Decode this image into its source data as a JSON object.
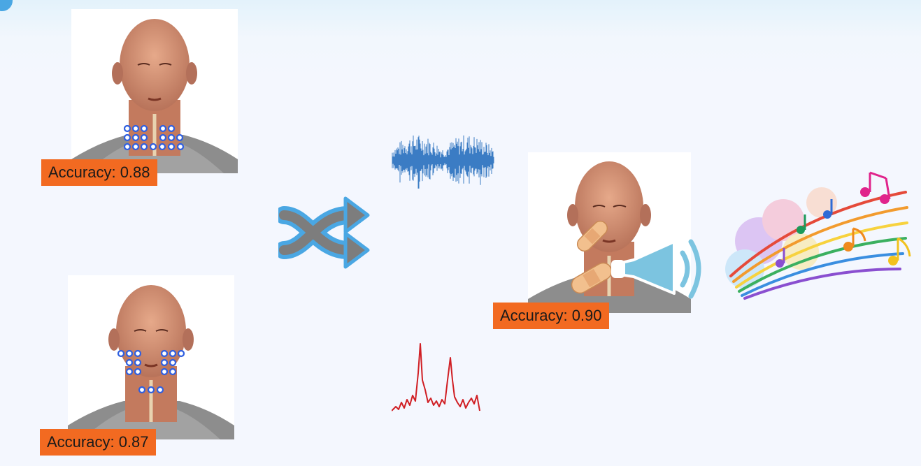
{
  "panels": {
    "neck": {
      "accuracy_label": "Accuracy: 0.88"
    },
    "face": {
      "accuracy_label": "Accuracy: 0.87"
    },
    "combined": {
      "accuracy_label": "Accuracy: 0.90"
    }
  },
  "colors": {
    "badge": "#f26a21",
    "electrode": "#2f5fe0",
    "shuffle_arrow": "#4aa7e3",
    "waveform": "#3b7cc4",
    "spectrum": "#d01f24",
    "speaker": "#7cc4e0"
  },
  "icons": [
    "shuffle-icon",
    "speaker-icon",
    "bandage-icon",
    "music-notes-icon"
  ]
}
